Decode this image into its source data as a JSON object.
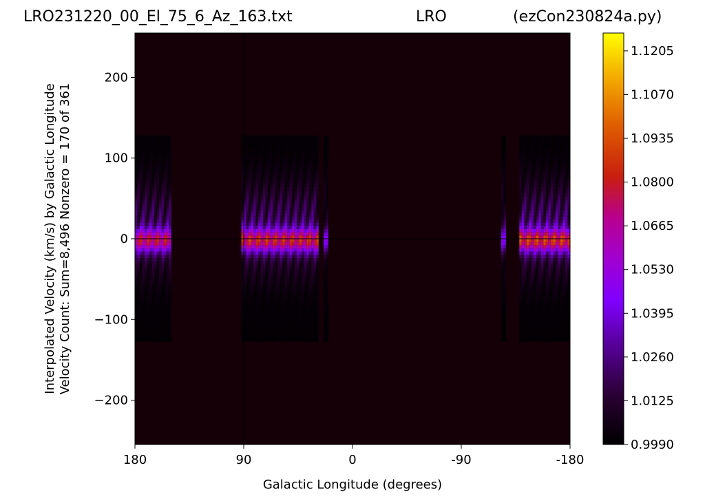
{
  "titles": {
    "left": "LRO231220_00_El_75_6_Az_163.txt",
    "center": "LRO",
    "right": "(ezCon230824a.py)"
  },
  "chart_data": {
    "type": "heatmap",
    "xlabel": "Galactic Longitude (degrees)",
    "ylabel_line1": "Interpolated Velocity (km/s) by Galactic Longitude",
    "ylabel_line2": "Velocity Count: Sum=8,496 Nonzero = 170 of 361",
    "xlim": [
      180,
      -180
    ],
    "ylim": [
      -255,
      255
    ],
    "x_ticks": [
      180,
      90,
      0,
      -90,
      -180
    ],
    "x_tick_labels": [
      "180",
      "90",
      "0",
      "-90",
      "-180"
    ],
    "y_ticks": [
      200,
      100,
      0,
      -100,
      -200
    ],
    "y_tick_labels": [
      "200",
      "100",
      "0",
      "−100",
      "−200"
    ],
    "colorbar": {
      "min": 0.999,
      "max": 1.126,
      "colormap": "gnuplot",
      "ticks": [
        0.999,
        1.0125,
        1.026,
        1.0395,
        1.053,
        1.0665,
        1.08,
        1.0935,
        1.107,
        1.1205
      ],
      "tick_labels": [
        "0.9990",
        "1.0125",
        "1.0260",
        "1.0395",
        "1.0530",
        "1.0665",
        "1.0800",
        "1.0935",
        "1.1070",
        "1.1205"
      ]
    },
    "velocity_range": [
      -128,
      128
    ],
    "data_bands": [
      {
        "lon_from": 180,
        "lon_to": 150,
        "peak": 1.058,
        "wing": 1.03
      },
      {
        "lon_from": 92,
        "lon_to": 28,
        "peak": 1.062,
        "wing": 1.032
      },
      {
        "lon_from": 24,
        "lon_to": 20,
        "peak": 1.035,
        "wing": 1.015
      },
      {
        "lon_from": -123,
        "lon_to": -127,
        "peak": 1.03,
        "wing": 1.02
      },
      {
        "lon_from": -138,
        "lon_to": -180,
        "peak": 1.065,
        "wing": 1.035
      }
    ],
    "reference_lines": [
      {
        "axis": "y",
        "value": 0
      },
      {
        "axis": "x",
        "value": 90
      }
    ]
  }
}
